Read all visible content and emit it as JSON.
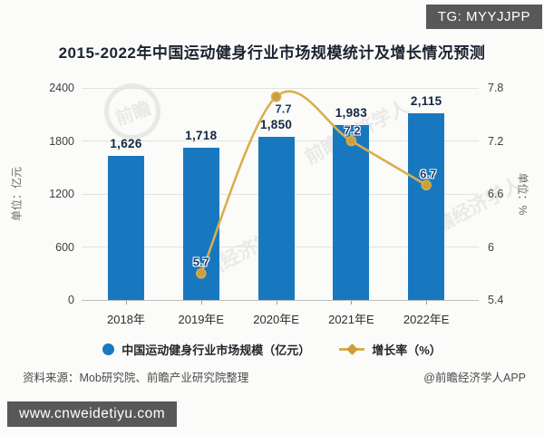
{
  "badges": {
    "top_right": "TG: MYYJJPP",
    "bottom_left": "www.cnweidetiyu.com"
  },
  "title": "2015-2022年中国运动健身行业市场规模统计及增长情况预测",
  "chart_data": {
    "type": "bar",
    "subtype": "bar+line combo",
    "categories": [
      "2018年",
      "2019年E",
      "2020年E",
      "2021年E",
      "2022年E"
    ],
    "series": [
      {
        "name": "中国运动健身行业市场规模（亿元）",
        "type": "bar",
        "axis": "left",
        "values": [
          1626,
          1718,
          1850,
          1983,
          2115
        ],
        "labels": [
          "1,626",
          "1,718",
          "1,850",
          "1,983",
          "2,115"
        ],
        "color": "#1878bf"
      },
      {
        "name": "增长率（%）",
        "type": "line",
        "axis": "right",
        "x_categories": [
          "2019年E",
          "2020年E",
          "2021年E",
          "2022年E"
        ],
        "values": [
          5.7,
          7.7,
          7.2,
          6.7
        ],
        "labels": [
          "5.7",
          "7.7",
          "7.2",
          "6.7"
        ],
        "color": "#d9ae4c",
        "marker_color": "#c99f3e"
      }
    ],
    "left_axis": {
      "title": "单位：亿元",
      "range": [
        0,
        2400
      ],
      "ticks": [
        0,
        600,
        1200,
        1800,
        2400
      ],
      "tick_labels": [
        "0",
        "600",
        "1200",
        "1800",
        "2400"
      ]
    },
    "right_axis": {
      "title": "单位：%",
      "range": [
        5.4,
        7.8
      ],
      "ticks": [
        5.4,
        6,
        6.6,
        7.2,
        7.8
      ],
      "tick_labels": [
        "5.4",
        "6",
        "6.6",
        "7.2",
        "7.8"
      ]
    },
    "grid": true,
    "legend_position": "bottom"
  },
  "footer": {
    "source": "资料来源：Mob研究院、前瞻产业研究院整理",
    "credit": "@前瞻经济学人APP"
  },
  "watermark": {
    "logo_text": "前瞻",
    "text": "前瞻经济学人"
  }
}
